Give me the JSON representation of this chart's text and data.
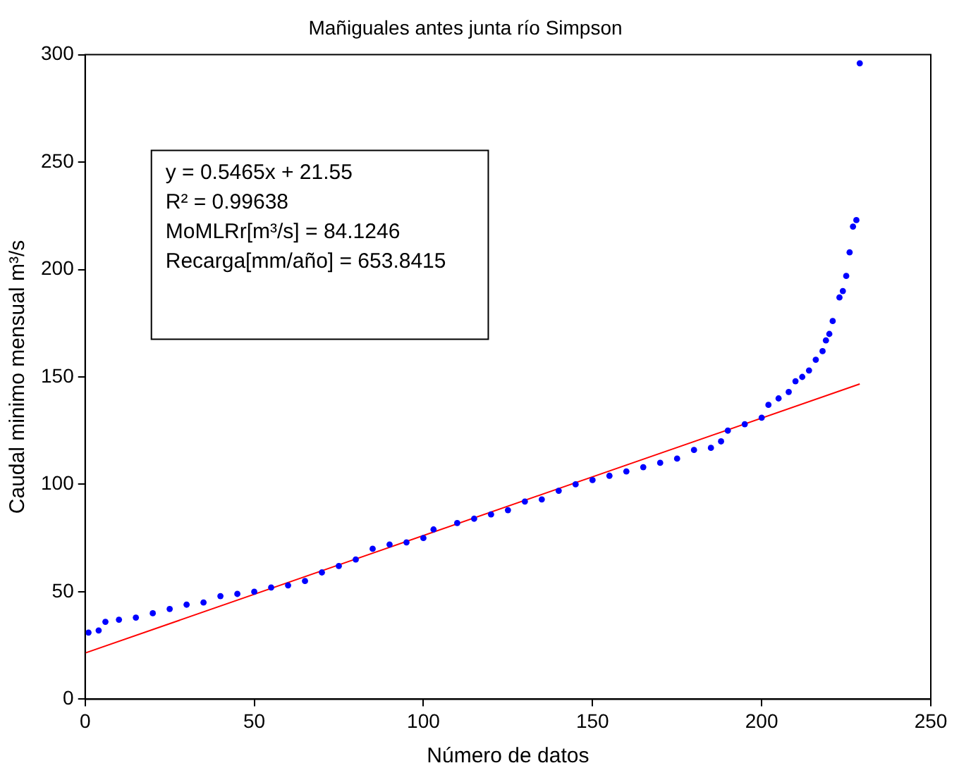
{
  "chart_data": {
    "type": "scatter",
    "title": "Mañiguales antes junta río Simpson",
    "xlabel": "Número de datos",
    "ylabel": "Caudal minimo mensual m³/s",
    "xlim": [
      0,
      250
    ],
    "xticks": [
      0,
      50,
      100,
      150,
      200,
      250
    ],
    "ylim": [
      0,
      300
    ],
    "yticks": [
      0,
      50,
      100,
      150,
      200,
      250,
      300
    ],
    "grid": false,
    "legend": false,
    "annotations": [
      "y = 0.5465x + 21.55",
      "R² = 0.99638",
      "MoMLRr[m³/s] = 84.1246",
      "Recarga[mm/año] = 653.8415"
    ],
    "series": [
      {
        "type": "scatter",
        "color": "#0000ff",
        "marker": "circle",
        "x": [
          1,
          4,
          6,
          10,
          15,
          20,
          25,
          30,
          35,
          40,
          45,
          50,
          55,
          60,
          65,
          70,
          75,
          80,
          85,
          90,
          95,
          100,
          103,
          110,
          115,
          120,
          125,
          130,
          135,
          140,
          145,
          150,
          155,
          160,
          165,
          170,
          175,
          180,
          185,
          188,
          190,
          195,
          200,
          202,
          205,
          208,
          210,
          212,
          214,
          216,
          218,
          219,
          220,
          221,
          223,
          224,
          225,
          226,
          227,
          228,
          229
        ],
        "values": [
          31,
          32,
          36,
          37,
          38,
          40,
          42,
          44,
          45,
          48,
          49,
          50,
          52,
          53,
          55,
          59,
          62,
          65,
          70,
          72,
          73,
          75,
          79,
          82,
          84,
          86,
          88,
          92,
          93,
          97,
          100,
          102,
          104,
          106,
          108,
          110,
          112,
          116,
          117,
          120,
          125,
          128,
          131,
          137,
          140,
          143,
          148,
          150,
          153,
          158,
          162,
          167,
          170,
          176,
          187,
          190,
          197,
          208,
          220,
          223,
          296
        ]
      },
      {
        "type": "line",
        "color": "#ff0000",
        "marker": "none",
        "line_style": "solid",
        "x": [
          0,
          229
        ],
        "values": [
          21.5,
          146.7
        ]
      }
    ]
  }
}
